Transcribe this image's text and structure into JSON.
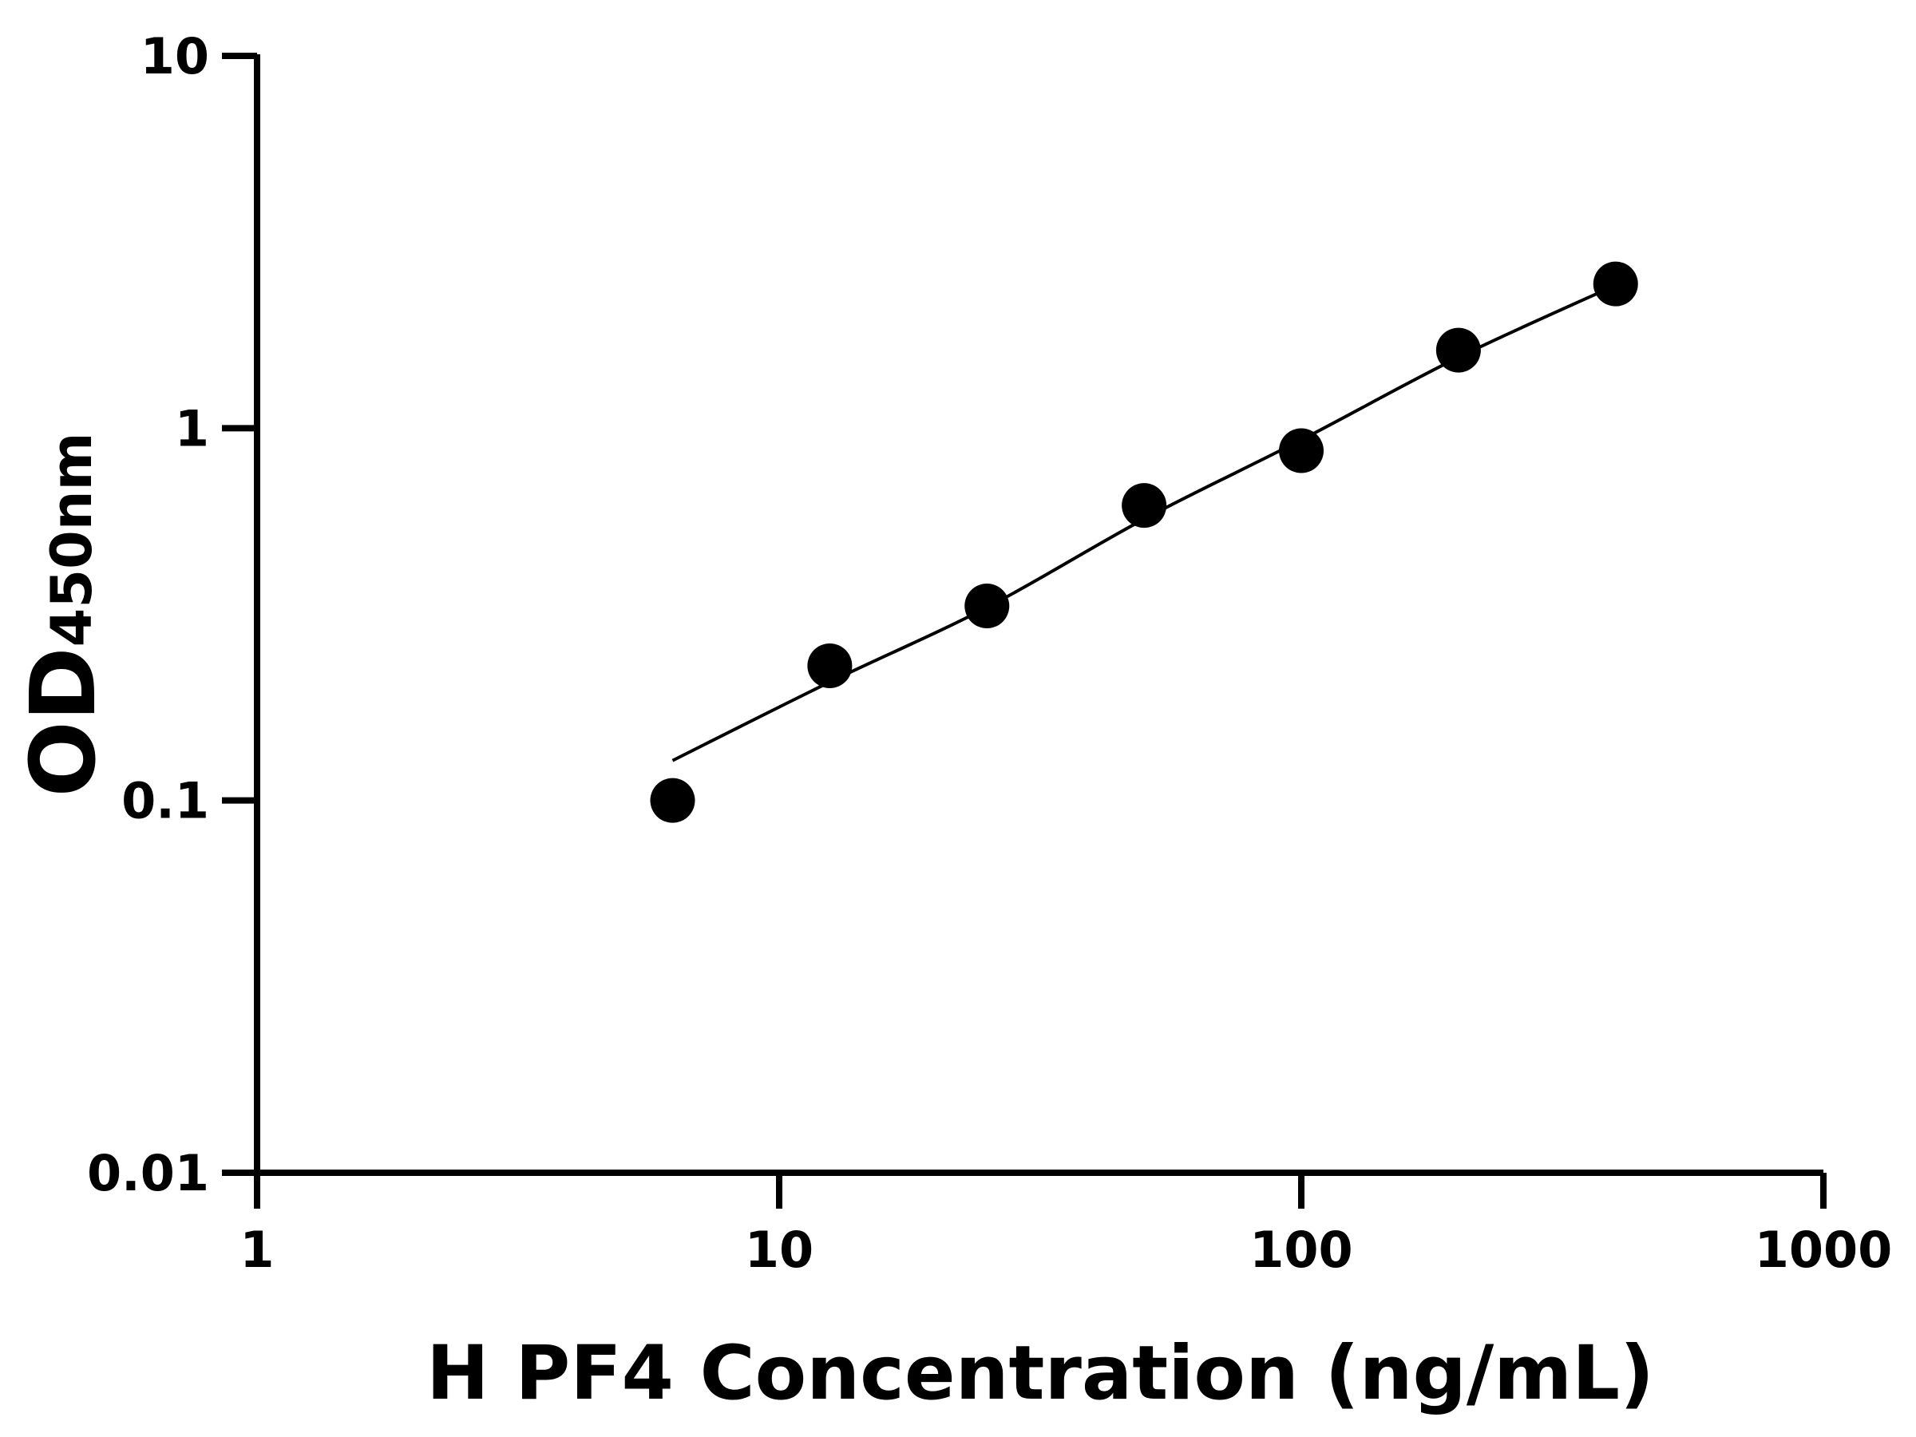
{
  "chart_data": {
    "type": "scatter",
    "title": "",
    "xlabel": "H PF4 Concentration (ng/mL)",
    "ylabel_main": "OD",
    "ylabel_sub": "450nm",
    "x_scale": "log",
    "y_scale": "log",
    "xlim": [
      1,
      1000
    ],
    "ylim": [
      0.01,
      10
    ],
    "x_ticks": [
      1,
      10,
      100,
      1000
    ],
    "x_tick_labels": [
      "1",
      "10",
      "100",
      "1000"
    ],
    "y_ticks": [
      0.01,
      0.1,
      1,
      10
    ],
    "y_tick_labels": [
      "0.01",
      "0.1",
      "1",
      "10"
    ],
    "grid": false,
    "legend": "none",
    "colors": {
      "points": "#000000",
      "curve": "#000000",
      "axes": "#000000"
    },
    "points": {
      "x": [
        6.25,
        12.5,
        25,
        50,
        100,
        200,
        400
      ],
      "y": [
        0.1,
        0.23,
        0.333,
        0.62,
        0.87,
        1.62,
        2.44
      ]
    },
    "fit_curve": {
      "x": [
        6.25,
        12.5,
        25,
        50,
        100,
        200,
        400
      ],
      "y": [
        0.128,
        0.208,
        0.33,
        0.57,
        0.93,
        1.55,
        2.42
      ]
    }
  }
}
